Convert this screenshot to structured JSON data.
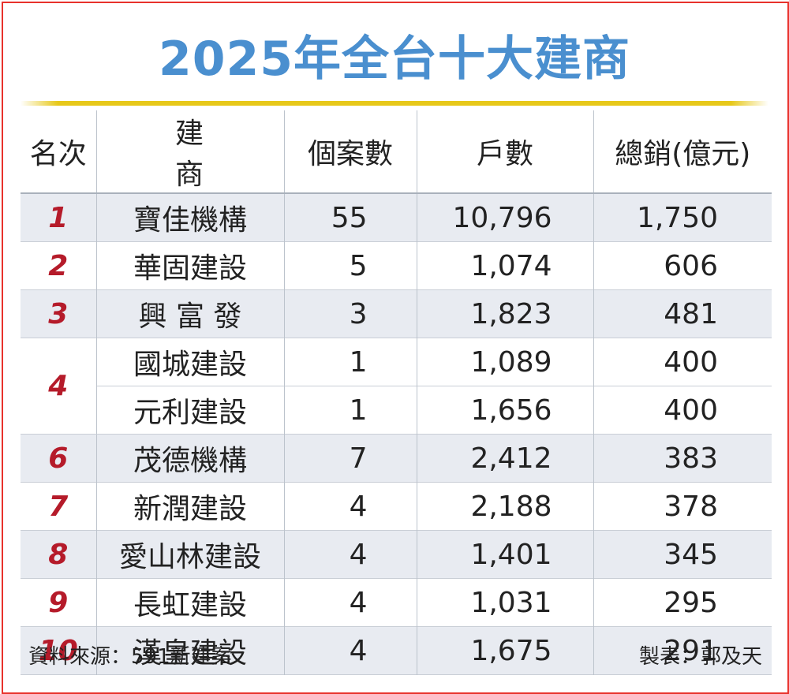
{
  "title": "2025年全台十大建商",
  "header": {
    "rank": "名次",
    "company": "建　商",
    "cases": "個案數",
    "units": "戶數",
    "sales": "總銷(億元)"
  },
  "rows": [
    {
      "rank": "1",
      "company": "寶佳機構",
      "cases": "55",
      "units": "10,796",
      "sales": "1,750"
    },
    {
      "rank": "2",
      "company": "華固建設",
      "cases": "5",
      "units": "1,074",
      "sales": "606"
    },
    {
      "rank": "3",
      "company": "興 富 發",
      "cases": "3",
      "units": "1,823",
      "sales": "481"
    },
    {
      "rank": "4",
      "company": "國城建設",
      "cases": "1",
      "units": "1,089",
      "sales": "400"
    },
    {
      "rank": "4",
      "company": "元利建設",
      "cases": "1",
      "units": "1,656",
      "sales": "400"
    },
    {
      "rank": "6",
      "company": "茂德機構",
      "cases": "7",
      "units": "2,412",
      "sales": "383"
    },
    {
      "rank": "7",
      "company": "新潤建設",
      "cases": "4",
      "units": "2,188",
      "sales": "378"
    },
    {
      "rank": "8",
      "company": "愛山林建設",
      "cases": "4",
      "units": "1,401",
      "sales": "345"
    },
    {
      "rank": "9",
      "company": "長虹建設",
      "cases": "4",
      "units": "1,031",
      "sales": "295"
    },
    {
      "rank": "10",
      "company": "漢皇建設",
      "cases": "4",
      "units": "1,675",
      "sales": "291"
    }
  ],
  "footer": {
    "source": "資料來源：591新建案",
    "credit": "製表：郭及天"
  },
  "colors": {
    "border": "#e8322c",
    "title": "#4a8fcf",
    "rule": "#e7c81a",
    "rank": "#b51b2a",
    "shade": "#e8ebf1"
  }
}
